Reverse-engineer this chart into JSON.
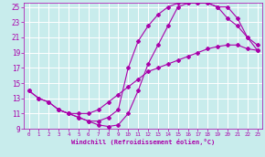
{
  "xlabel": "Windchill (Refroidissement éolien,°C)",
  "bg_color": "#c8ecec",
  "grid_color": "#ffffff",
  "line_color": "#aa00aa",
  "xlim": [
    -0.5,
    23.5
  ],
  "ylim": [
    9,
    25.5
  ],
  "xticks": [
    0,
    1,
    2,
    3,
    4,
    5,
    6,
    7,
    8,
    9,
    10,
    11,
    12,
    13,
    14,
    15,
    16,
    17,
    18,
    19,
    20,
    21,
    22,
    23
  ],
  "yticks": [
    9,
    11,
    13,
    15,
    17,
    19,
    21,
    23,
    25
  ],
  "line1_x": [
    0,
    1,
    2,
    3,
    4,
    5,
    6,
    7,
    8,
    9,
    10,
    11,
    12,
    13,
    14,
    15,
    16,
    17,
    18,
    19,
    20,
    21,
    22,
    23
  ],
  "line1_y": [
    14.0,
    13.0,
    12.5,
    11.5,
    11.0,
    11.0,
    11.0,
    11.5,
    12.5,
    13.5,
    14.5,
    15.5,
    16.5,
    17.0,
    17.5,
    18.0,
    18.5,
    19.0,
    19.5,
    19.8,
    20.0,
    20.0,
    19.5,
    19.3
  ],
  "line2_x": [
    0,
    1,
    2,
    3,
    4,
    5,
    6,
    7,
    8,
    9,
    10,
    11,
    12,
    13,
    14,
    15,
    16,
    17,
    18,
    19,
    20,
    21,
    22,
    23
  ],
  "line2_y": [
    14.0,
    13.0,
    12.5,
    11.5,
    11.0,
    10.5,
    10.0,
    10.0,
    10.5,
    11.5,
    17.0,
    20.5,
    22.5,
    24.0,
    25.0,
    25.5,
    25.5,
    25.5,
    25.5,
    25.0,
    25.0,
    23.5,
    21.0,
    19.3
  ],
  "line3_x": [
    3,
    4,
    5,
    6,
    7,
    8,
    9,
    10,
    11,
    12,
    13,
    14,
    15,
    16,
    17,
    18,
    19,
    20,
    21,
    22,
    23
  ],
  "line3_y": [
    11.5,
    11.0,
    10.5,
    10.0,
    9.5,
    9.3,
    9.5,
    11.0,
    14.0,
    17.5,
    20.0,
    22.5,
    25.0,
    25.5,
    25.5,
    25.5,
    25.0,
    23.5,
    22.5,
    21.0,
    20.0
  ]
}
